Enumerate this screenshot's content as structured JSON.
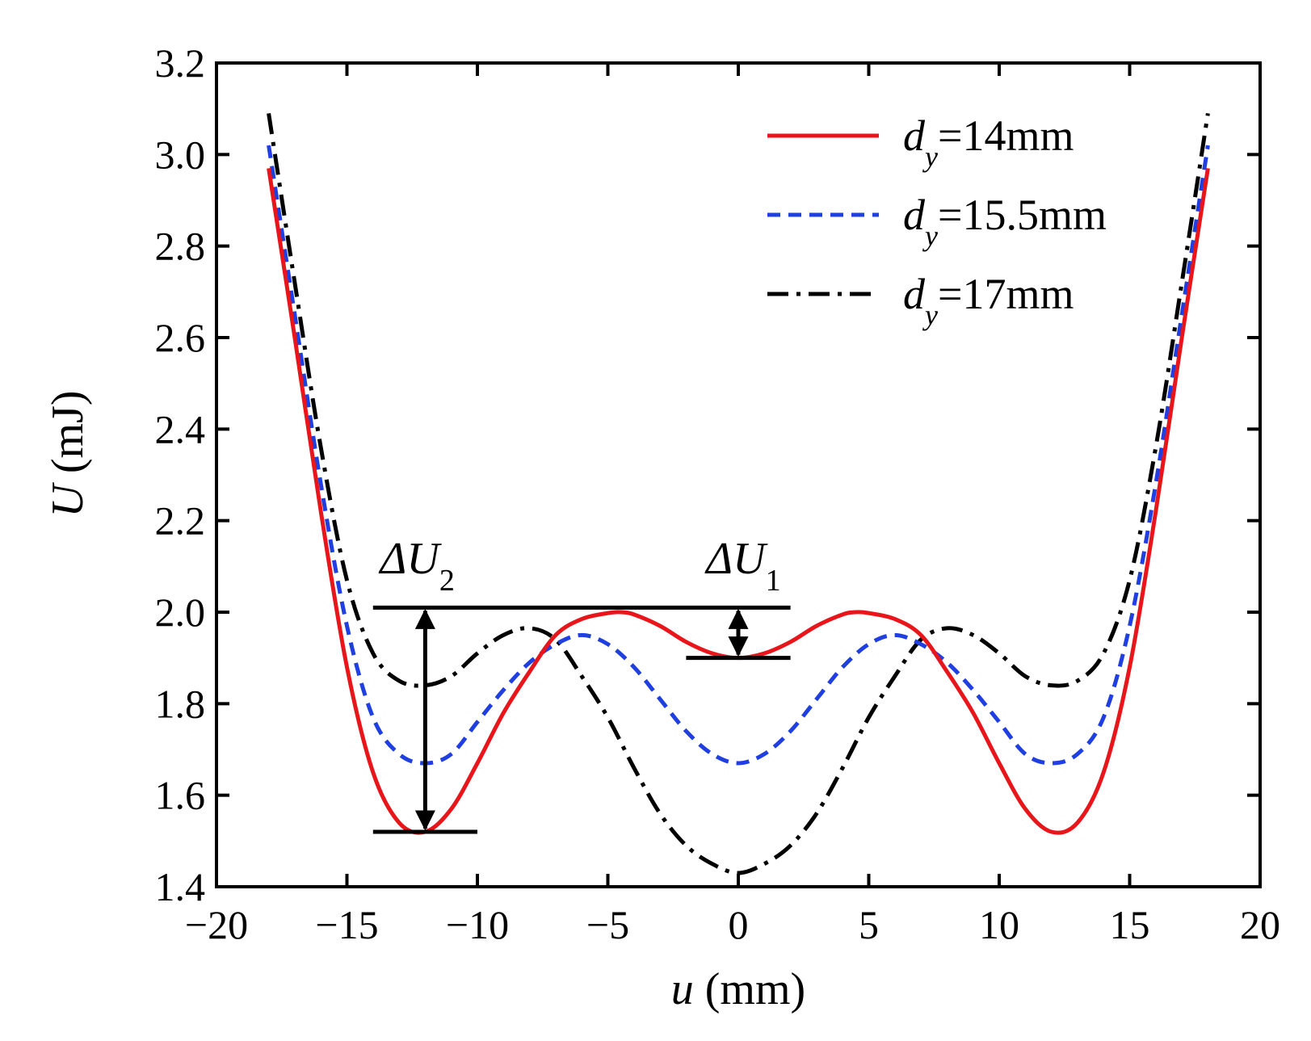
{
  "chart_data": {
    "type": "line",
    "title": "",
    "xlabel": {
      "symbol": "u",
      "unit": " (mm)"
    },
    "ylabel": {
      "symbol": "U",
      "unit": " (mJ)"
    },
    "xlim": [
      -20,
      20
    ],
    "ylim": [
      1.4,
      3.2
    ],
    "xticks": [
      -20,
      -15,
      -10,
      -5,
      0,
      5,
      10,
      15,
      20
    ],
    "xtick_labels": [
      "−20",
      "−15",
      "−10",
      "−5",
      "0",
      "5",
      "10",
      "15",
      "20"
    ],
    "yticks": [
      1.4,
      1.6,
      1.8,
      2.0,
      2.2,
      2.4,
      2.6,
      2.8,
      3.0,
      3.2
    ],
    "ytick_labels": [
      "1.4",
      "1.6",
      "1.8",
      "2.0",
      "2.2",
      "2.4",
      "2.6",
      "2.8",
      "3.0",
      "3.2"
    ],
    "grid": false,
    "legend_position": "top-right",
    "series": [
      {
        "name": "dy=14mm",
        "legend": {
          "symbol": "d",
          "sub": "y",
          "rest": "=14mm"
        },
        "color": "#e8161b",
        "style": "solid",
        "x": [
          -18,
          -17,
          -16,
          -15,
          -14,
          -13,
          -12,
          -11,
          -10,
          -9,
          -8,
          -7,
          -6,
          -5,
          -4.5,
          -4,
          -3,
          -2,
          -1,
          0,
          1,
          2,
          3,
          4,
          4.5,
          5,
          6,
          7,
          8,
          9,
          10,
          11,
          12,
          13,
          14,
          15,
          16,
          17,
          18
        ],
        "y": [
          2.97,
          2.6,
          2.22,
          1.88,
          1.65,
          1.54,
          1.52,
          1.57,
          1.67,
          1.78,
          1.87,
          1.95,
          1.985,
          1.998,
          2.0,
          1.995,
          1.97,
          1.935,
          1.91,
          1.9,
          1.91,
          1.935,
          1.97,
          1.995,
          2.0,
          1.998,
          1.985,
          1.95,
          1.87,
          1.78,
          1.67,
          1.57,
          1.52,
          1.54,
          1.65,
          1.88,
          2.22,
          2.6,
          2.97
        ]
      },
      {
        "name": "dy=15.5mm",
        "legend": {
          "symbol": "d",
          "sub": "y",
          "rest": "=15.5mm"
        },
        "color": "#1f3fe0",
        "style": "dashed",
        "x": [
          -18,
          -17,
          -16,
          -15,
          -14,
          -13,
          -12,
          -11,
          -10,
          -9,
          -8,
          -7,
          -6,
          -5,
          -4,
          -3,
          -2,
          -1,
          0,
          1,
          2,
          3,
          4,
          5,
          6,
          7,
          8,
          9,
          10,
          11,
          12,
          13,
          14,
          15,
          16,
          17,
          18
        ],
        "y": [
          3.02,
          2.65,
          2.28,
          1.97,
          1.77,
          1.69,
          1.67,
          1.69,
          1.76,
          1.83,
          1.89,
          1.93,
          1.95,
          1.93,
          1.88,
          1.81,
          1.74,
          1.69,
          1.67,
          1.69,
          1.74,
          1.81,
          1.88,
          1.93,
          1.95,
          1.93,
          1.89,
          1.83,
          1.76,
          1.69,
          1.67,
          1.69,
          1.77,
          1.97,
          2.28,
          2.65,
          3.02
        ]
      },
      {
        "name": "dy=17mm",
        "legend": {
          "symbol": "d",
          "sub": "y",
          "rest": "=17mm"
        },
        "color": "#000000",
        "style": "dash-dot",
        "x": [
          -18,
          -17,
          -16,
          -15,
          -14,
          -13,
          -12,
          -11,
          -10,
          -9,
          -8,
          -7,
          -6,
          -5,
          -4,
          -3,
          -2,
          -1,
          0,
          1,
          2,
          3,
          4,
          5,
          6,
          7,
          8,
          9,
          10,
          11,
          12,
          13,
          14,
          15,
          16,
          17,
          18
        ],
        "y": [
          3.09,
          2.72,
          2.36,
          2.07,
          1.91,
          1.85,
          1.84,
          1.86,
          1.91,
          1.95,
          1.965,
          1.94,
          1.86,
          1.77,
          1.66,
          1.56,
          1.49,
          1.45,
          1.43,
          1.45,
          1.49,
          1.56,
          1.66,
          1.77,
          1.86,
          1.94,
          1.965,
          1.95,
          1.91,
          1.86,
          1.84,
          1.85,
          1.91,
          2.07,
          2.36,
          2.72,
          3.09
        ]
      }
    ],
    "annotations": [
      {
        "label": {
          "symbol": "ΔU",
          "sub": "2"
        },
        "top_line": {
          "x": [
            -14,
            2
          ],
          "y": 2.01
        },
        "bottom_line": {
          "x": [
            -14,
            -10
          ],
          "y": 1.52
        },
        "arrow": {
          "x": -12,
          "y": [
            2.01,
            1.52
          ]
        }
      },
      {
        "label": {
          "symbol": "ΔU",
          "sub": "1"
        },
        "bottom_line": {
          "x": [
            -2,
            2
          ],
          "y": 1.9
        },
        "arrow": {
          "x": 0,
          "y": [
            2.01,
            1.9
          ]
        }
      }
    ]
  }
}
